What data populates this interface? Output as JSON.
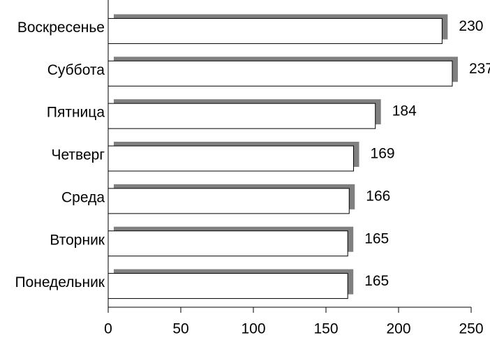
{
  "chart_data": {
    "type": "barh",
    "categories": [
      "Воскресенье",
      "Суббота",
      "Пятница",
      "Четверг",
      "Среда",
      "Вторник",
      "Понедельник"
    ],
    "values": [
      230,
      237,
      184,
      169,
      166,
      165,
      165
    ],
    "color": "#ffffff",
    "shadow_color": "#808080",
    "xlim": [
      0,
      250
    ],
    "xticks": [
      0,
      50,
      100,
      150,
      200,
      250
    ]
  }
}
